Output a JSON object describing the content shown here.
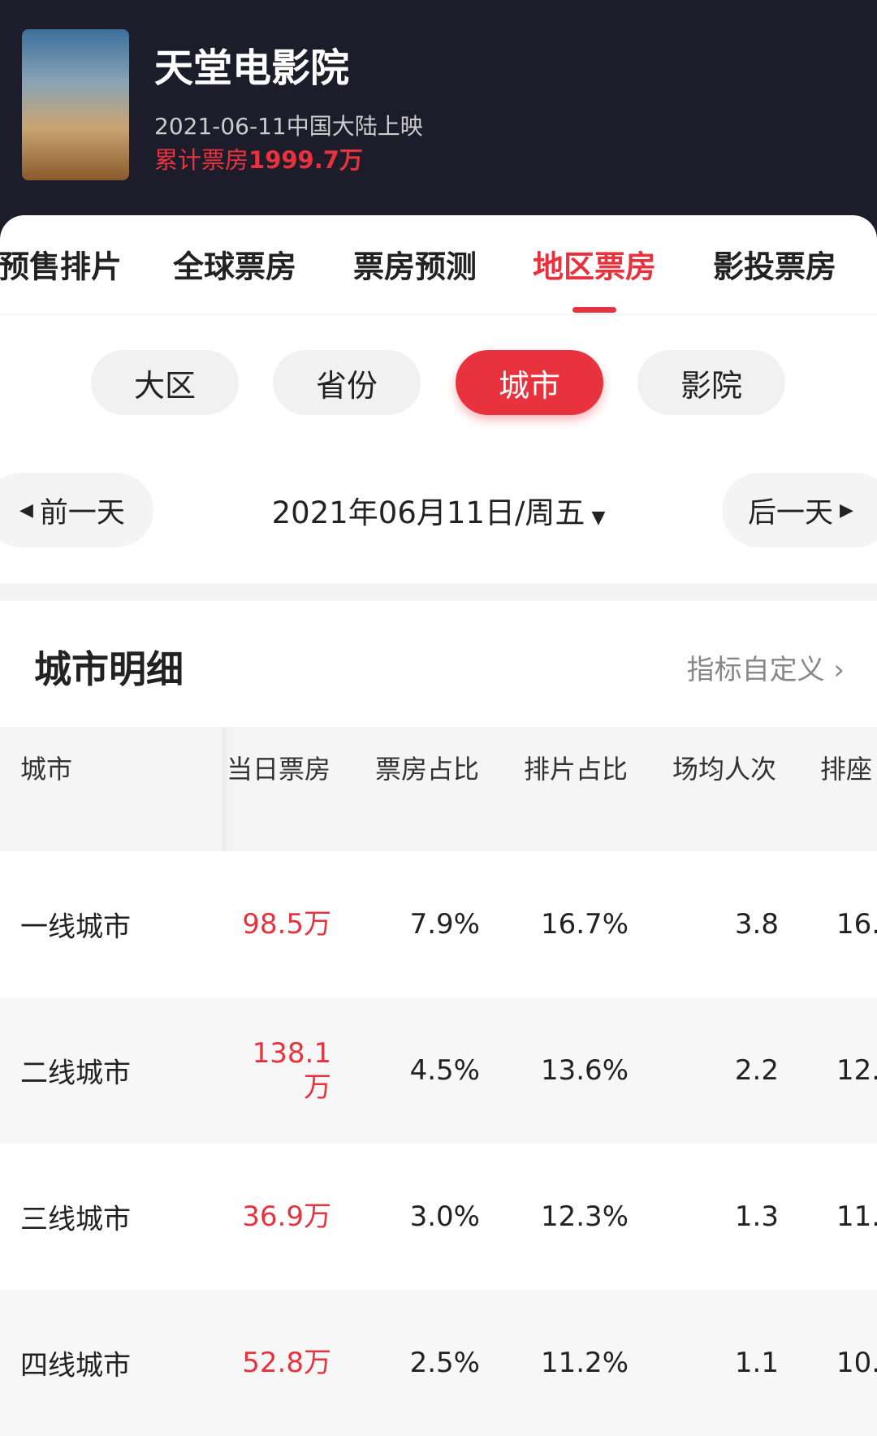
{
  "header": {
    "title": "天堂电影院",
    "release": "2021-06-11中国大陆上映",
    "total_label": "累计票房",
    "total_value": "1999.7万"
  },
  "tabs": [
    "预售排片",
    "全球票房",
    "票房预测",
    "地区票房",
    "影投票房"
  ],
  "active_tab": 3,
  "segments": [
    "大区",
    "省份",
    "城市",
    "影院"
  ],
  "active_segment": 2,
  "date_nav": {
    "prev": "前一天",
    "date": "2021年06月11日/周五",
    "next": "后一天"
  },
  "section": {
    "title": "城市明细",
    "link": "指标自定义"
  },
  "table": {
    "headers": [
      "城市",
      "当日票房",
      "票房占比",
      "排片占比",
      "场均人次",
      "排座"
    ],
    "rows": [
      [
        "一线城市",
        "98.5万",
        "7.9%",
        "16.7%",
        "3.8",
        "16."
      ],
      [
        "二线城市",
        "138.1万",
        "4.5%",
        "13.6%",
        "2.2",
        "12."
      ],
      [
        "三线城市",
        "36.9万",
        "3.0%",
        "12.3%",
        "1.3",
        "11."
      ],
      [
        "四线城市",
        "52.8万",
        "2.5%",
        "11.2%",
        "1.1",
        "10."
      ]
    ]
  }
}
